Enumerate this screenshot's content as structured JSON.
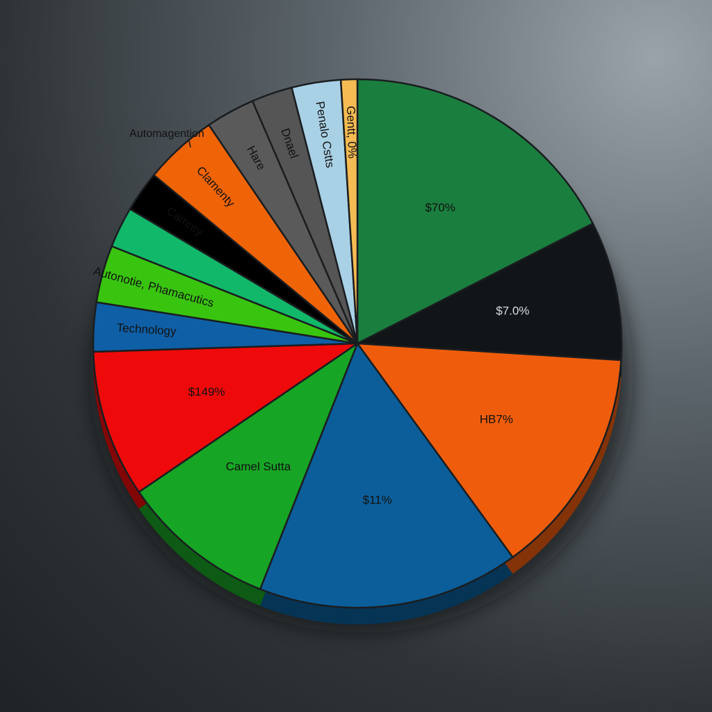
{
  "chart_data": {
    "type": "pie",
    "title": "",
    "slices": [
      {
        "label": "$70%",
        "value": 17.5,
        "color": "#1a7f3e",
        "text_tone": "dark"
      },
      {
        "label": "$7.0%",
        "value": 8.5,
        "color": "#121518",
        "text_tone": "light"
      },
      {
        "label": "HB7%",
        "value": 14.0,
        "color": "#ef5d0c",
        "text_tone": "dark"
      },
      {
        "label": "$11%",
        "value": 16.0,
        "color": "#0b5e9a",
        "text_tone": "dark"
      },
      {
        "label": "Camel Sutta",
        "value": 9.5,
        "color": "#17a525",
        "text_tone": "dark"
      },
      {
        "label": "$149%",
        "value": 9.0,
        "color": "#ee0a0a",
        "text_tone": "dark"
      },
      {
        "label": "Technology",
        "value": 3.0,
        "color": "#0f5fa6",
        "text_tone": "dark"
      },
      {
        "label": "Autonotie, Phamacutics",
        "value": 3.5,
        "color": "#39c40f",
        "text_tone": "dark"
      },
      {
        "label": "",
        "value": 2.5,
        "color": "#12b86a",
        "text_tone": "dark"
      },
      {
        "label": "Camrey",
        "value": 2.5,
        "color": "#000000",
        "text_tone": "dark"
      },
      {
        "label": "Clamenty",
        "value": 4.5,
        "color": "#f06408",
        "text_tone": "dark"
      },
      {
        "label": "Hare",
        "value": 3.0,
        "color": "#5a5a5a",
        "text_tone": "dark"
      },
      {
        "label": "Dnael",
        "value": 2.5,
        "color": "#555555",
        "text_tone": "dark"
      },
      {
        "label": "Penalo Cstts",
        "value": 3.0,
        "color": "#a9d1e6",
        "text_tone": "dark"
      },
      {
        "label": "Gentt, 0%",
        "value": 1.0,
        "color": "#f6bb52",
        "text_tone": "dark"
      }
    ],
    "callouts": [
      "Automagention"
    ],
    "legend": "none"
  }
}
